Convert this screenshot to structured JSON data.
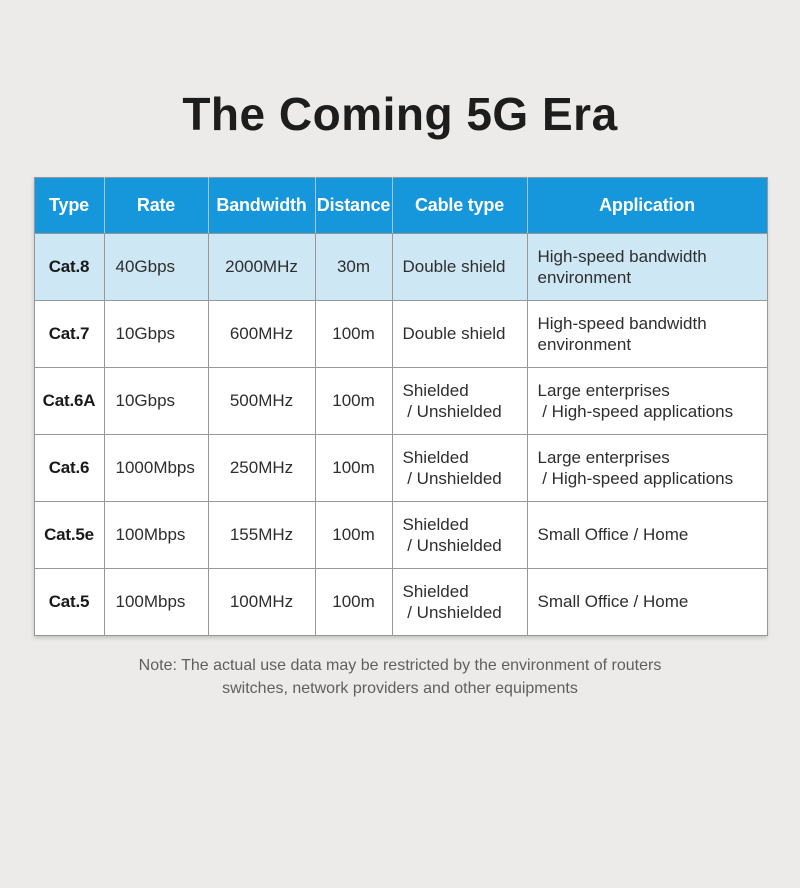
{
  "page": {
    "title": "The Coming 5G Era",
    "note": "Note: The actual use data may be restricted by the environment of routers\nswitches, network providers and other equipments"
  },
  "colors": {
    "header_bg": "#1697dc",
    "header_text": "#ffffff",
    "highlight_row_bg": "#cde7f5",
    "row_bg": "#ffffff",
    "grid_line": "#979797",
    "page_bg": "#ecebe9",
    "title_text": "#1d1d1d",
    "cell_text": "#2e2e2e",
    "note_text": "#5f5f5f"
  },
  "chart_data": {
    "type": "table",
    "title": "The Coming 5G Era",
    "columns": [
      "Type",
      "Rate",
      "Bandwidth",
      "Distance",
      "Cable type",
      "Application"
    ],
    "rows": [
      [
        "Cat.8",
        "40Gbps",
        "2000MHz",
        "30m",
        "Double shield",
        "High-speed bandwidth\nenvironment"
      ],
      [
        "Cat.7",
        "10Gbps",
        "600MHz",
        "100m",
        "Double shield",
        "High-speed bandwidth\nenvironment"
      ],
      [
        "Cat.6A",
        "10Gbps",
        "500MHz",
        "100m",
        "Shielded\n / Unshielded",
        "Large enterprises\n / High-speed applications"
      ],
      [
        "Cat.6",
        "1000Mbps",
        "250MHz",
        "100m",
        "Shielded\n / Unshielded",
        "Large enterprises\n / High-speed applications"
      ],
      [
        "Cat.5e",
        "100Mbps",
        "155MHz",
        "100m",
        "Shielded\n / Unshielded",
        "Small Office / Home"
      ],
      [
        "Cat.5",
        "100Mbps",
        "100MHz",
        "100m",
        "Shielded\n / Unshielded",
        "Small Office / Home"
      ]
    ],
    "highlighted_row": "Cat.8",
    "layout_hints": {
      "header_position": "top",
      "grid": true
    }
  }
}
